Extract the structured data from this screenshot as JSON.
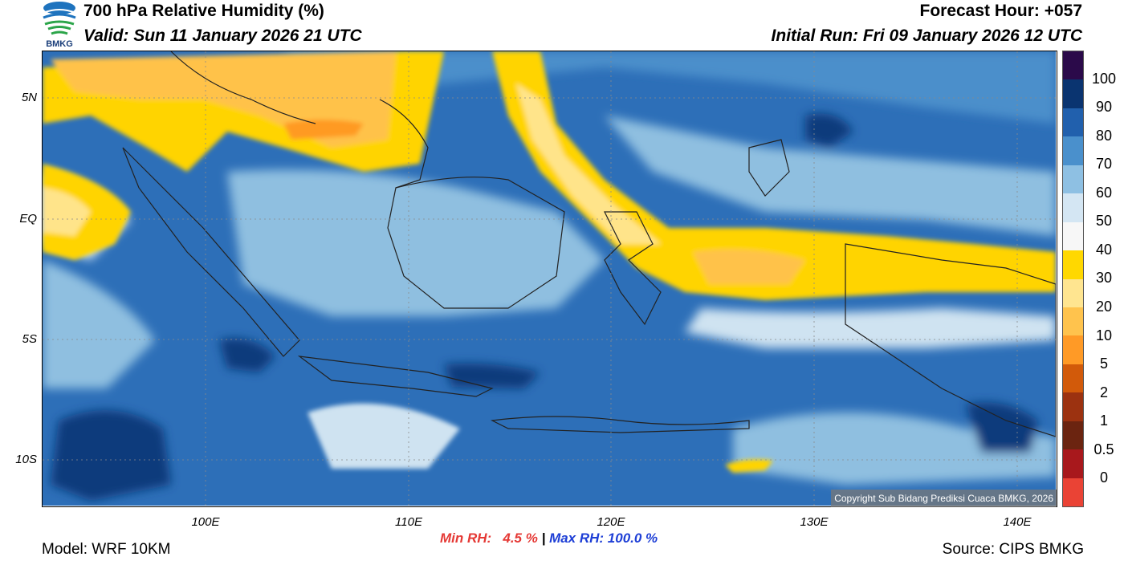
{
  "header": {
    "title": "700 hPa Relative Humidity (%)",
    "valid": "Valid: Sun 11 January 2026 21 UTC",
    "forecast_hour": "Forecast Hour: +057",
    "initial_run": "Initial Run: Fri 09 January 2026 12 UTC",
    "logo_text": "BMKG"
  },
  "map": {
    "lat_labels": [
      "5N",
      "EQ",
      "5S",
      "10S"
    ],
    "lon_labels": [
      "100E",
      "110E",
      "120E",
      "130E",
      "140E"
    ],
    "copyright": "Copyright Sub Bidang Prediksi Cuaca BMKG, 2026",
    "colors": {
      "ocean": "#2d6fb8",
      "moist_mid": "#4b8fcb",
      "moist_light": "#8fbfe0",
      "pale": "#cfe3f1",
      "dry_yellow": "#ffd400",
      "dry_light": "#ffe48a",
      "dry_orange": "#ffc24a",
      "very_dry": "#ff9a24",
      "deep": "#0f3a7c",
      "coast": "#222222"
    }
  },
  "colorbar": {
    "labels": [
      "100",
      "90",
      "80",
      "70",
      "60",
      "50",
      "40",
      "30",
      "20",
      "10",
      "5",
      "2",
      "1",
      "0.5",
      "0"
    ],
    "colors": [
      "#2b0a4a",
      "#0a3470",
      "#2160ad",
      "#4a90cc",
      "#8ec0e3",
      "#d4e6f3",
      "#f7f7f7",
      "#ffd800",
      "#ffe590",
      "#ffc34d",
      "#ff9a26",
      "#d25a0a",
      "#9c3210",
      "#6b2410",
      "#a8181c",
      "#ea4335"
    ]
  },
  "footer": {
    "min_rh": "Min RH:   4.5 %",
    "separator": " | ",
    "max_rh": "Max RH: 100.0 %",
    "model": "Model: WRF 10KM",
    "source": "Source: CIPS BMKG"
  }
}
